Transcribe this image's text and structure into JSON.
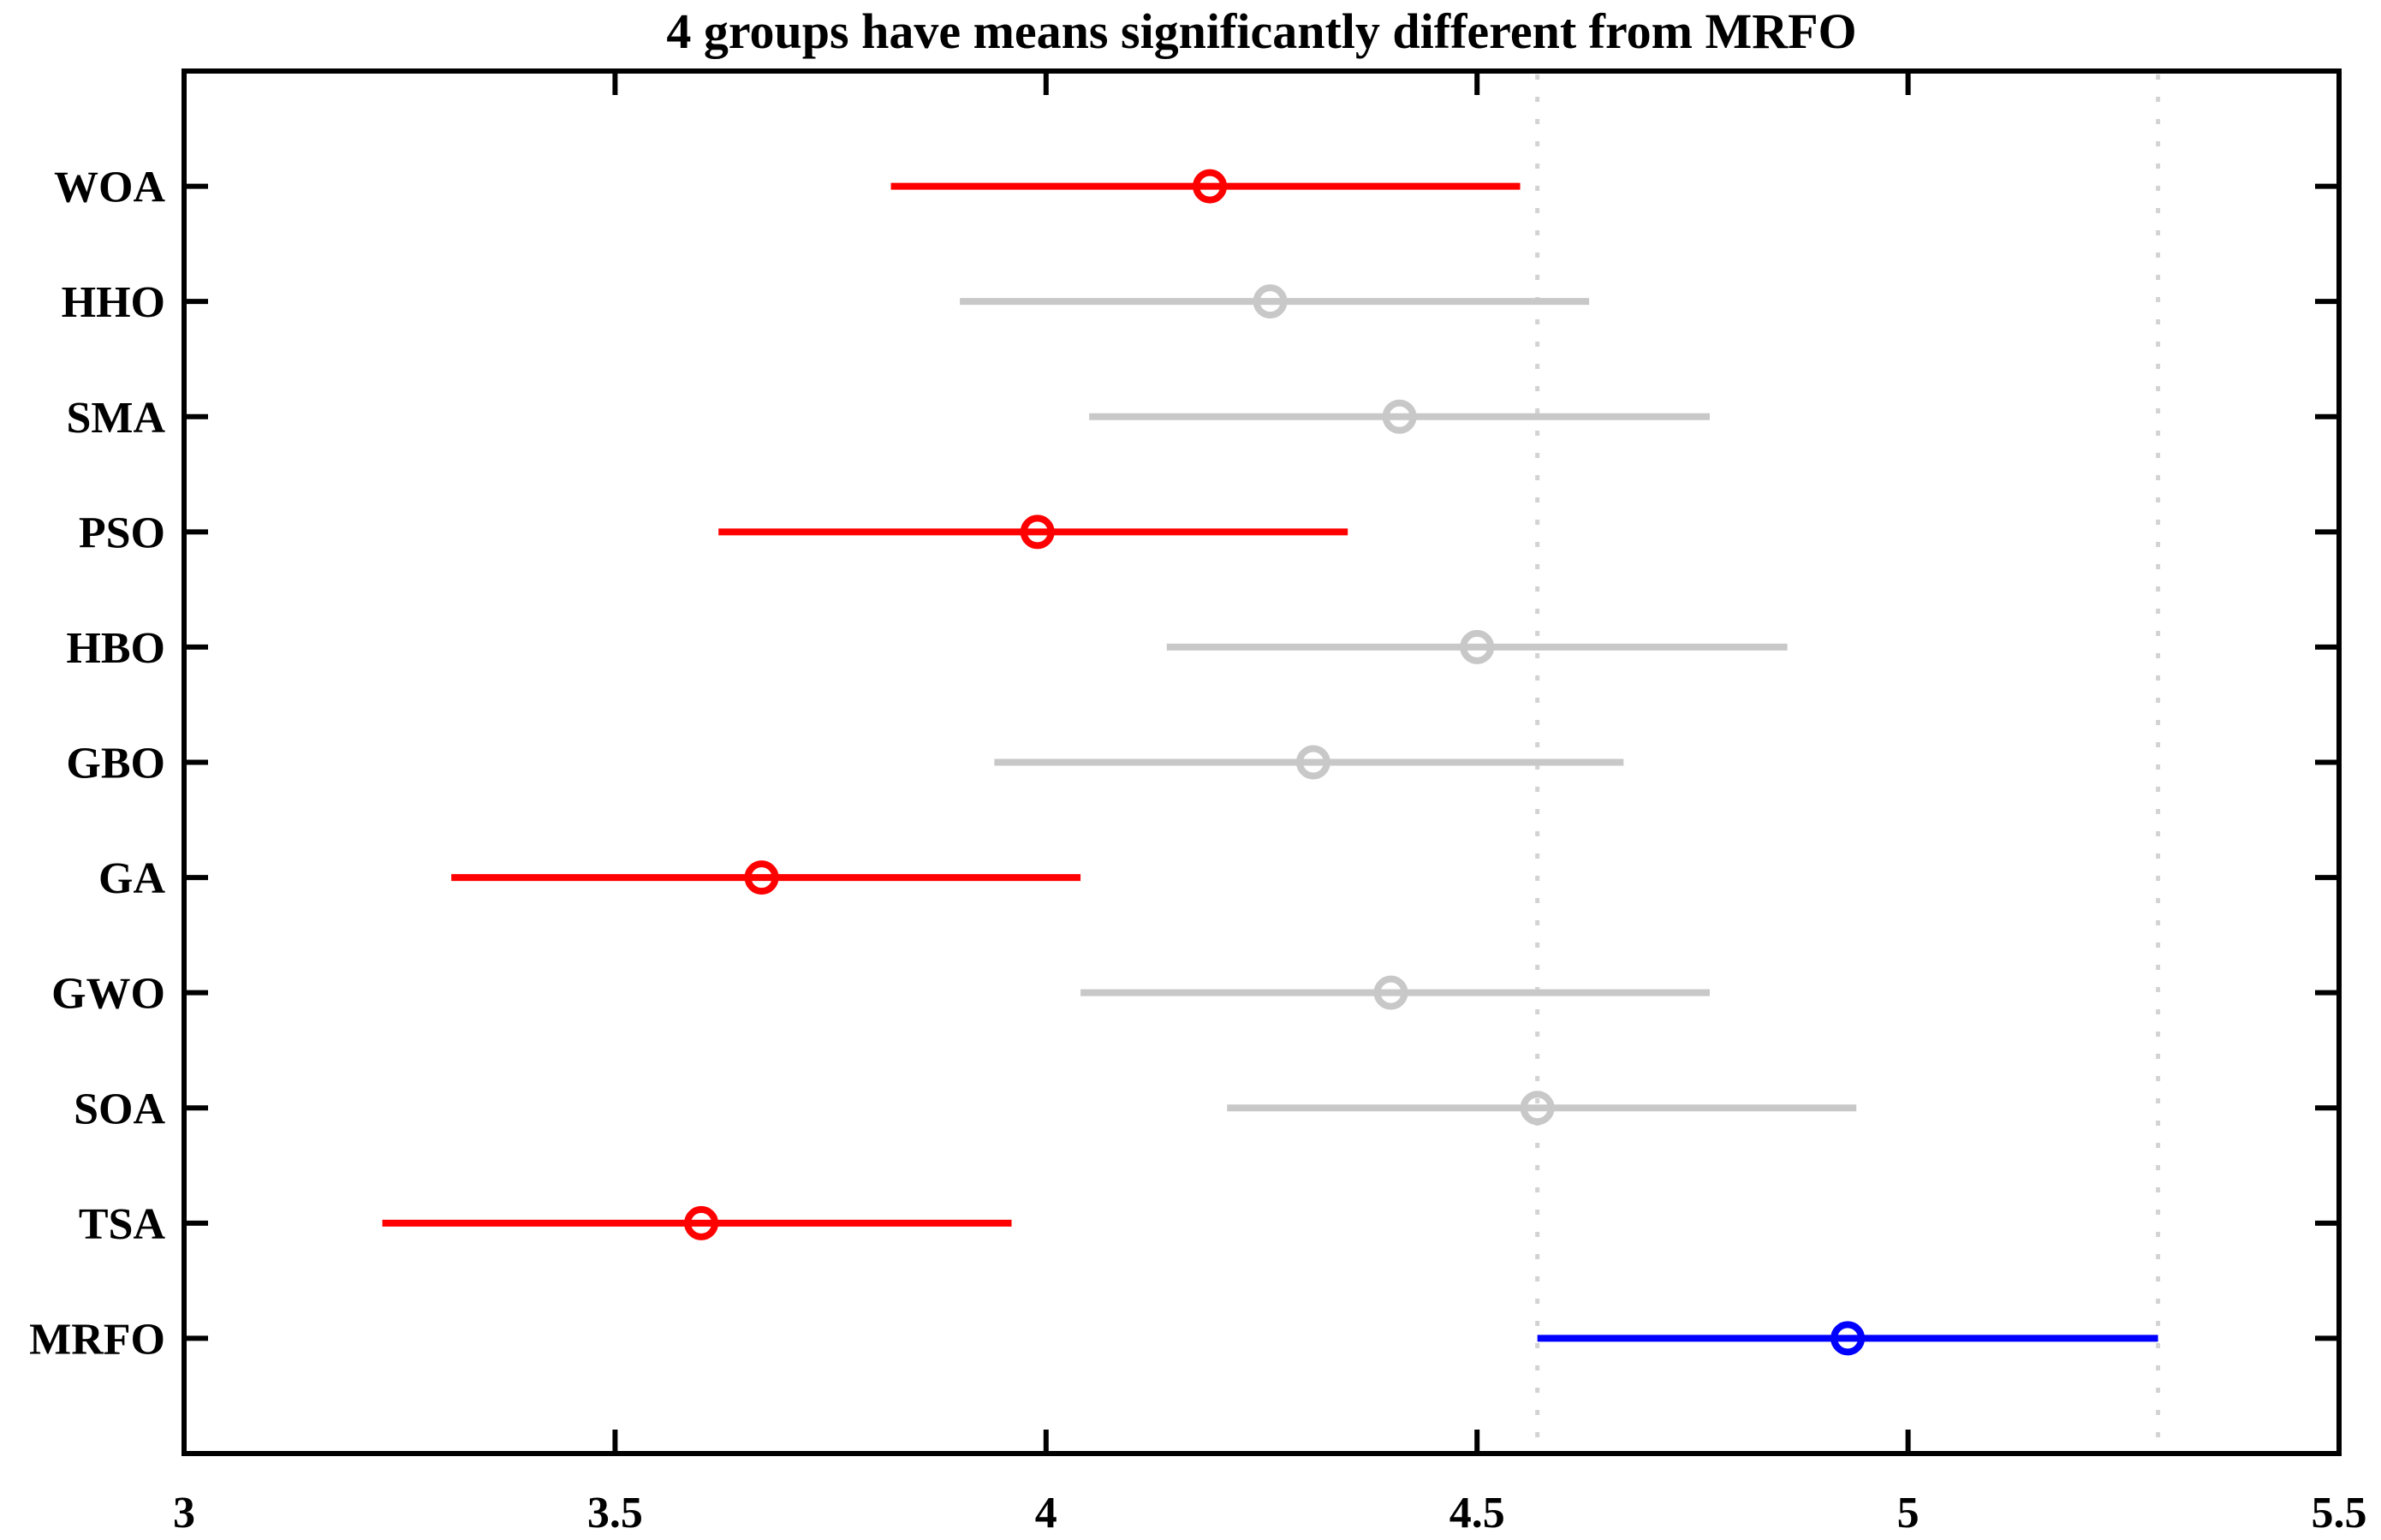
{
  "figure": {
    "title": "4 groups have means significantly different from MRFO"
  },
  "chart_data": {
    "type": "interval",
    "subtype": "multcompare-comparison-intervals",
    "title": "4 groups have means significantly different from MRFO",
    "xlabel": "",
    "ylabel": "",
    "xlim": [
      3,
      5.5
    ],
    "xtick_values": [
      3,
      3.5,
      4,
      4.5,
      5,
      5.5
    ],
    "xticks": [
      "3",
      "3.5",
      "4",
      "4.5",
      "5",
      "5.5"
    ],
    "grid": false,
    "legend": false,
    "reference_group": "MRFO",
    "reference_lines": [
      4.57,
      5.29
    ],
    "groups": [
      {
        "name": "WOA",
        "mean": 4.19,
        "lower": 3.82,
        "upper": 4.55,
        "status": "significant"
      },
      {
        "name": "HHO",
        "mean": 4.26,
        "lower": 3.9,
        "upper": 4.63,
        "status": "not_significant"
      },
      {
        "name": "SMA",
        "mean": 4.41,
        "lower": 4.05,
        "upper": 4.77,
        "status": "not_significant"
      },
      {
        "name": "PSO",
        "mean": 3.99,
        "lower": 3.62,
        "upper": 4.35,
        "status": "significant"
      },
      {
        "name": "HBO",
        "mean": 4.5,
        "lower": 4.14,
        "upper": 4.86,
        "status": "not_significant"
      },
      {
        "name": "GBO",
        "mean": 4.31,
        "lower": 3.94,
        "upper": 4.67,
        "status": "not_significant"
      },
      {
        "name": "GA",
        "mean": 3.67,
        "lower": 3.31,
        "upper": 4.04,
        "status": "significant"
      },
      {
        "name": "GWO",
        "mean": 4.4,
        "lower": 4.04,
        "upper": 4.77,
        "status": "not_significant"
      },
      {
        "name": "SOA",
        "mean": 4.57,
        "lower": 4.21,
        "upper": 4.94,
        "status": "not_significant"
      },
      {
        "name": "TSA",
        "mean": 3.6,
        "lower": 3.23,
        "upper": 3.96,
        "status": "significant"
      },
      {
        "name": "MRFO",
        "mean": 4.93,
        "lower": 4.57,
        "upper": 5.29,
        "status": "reference"
      }
    ],
    "colors": {
      "significant": "#ff0000",
      "not_significant": "#c8c8c8",
      "reference": "#0000ff",
      "reference_line": "#d3d3d3",
      "axis": "#000000",
      "background": "#ffffff"
    }
  }
}
